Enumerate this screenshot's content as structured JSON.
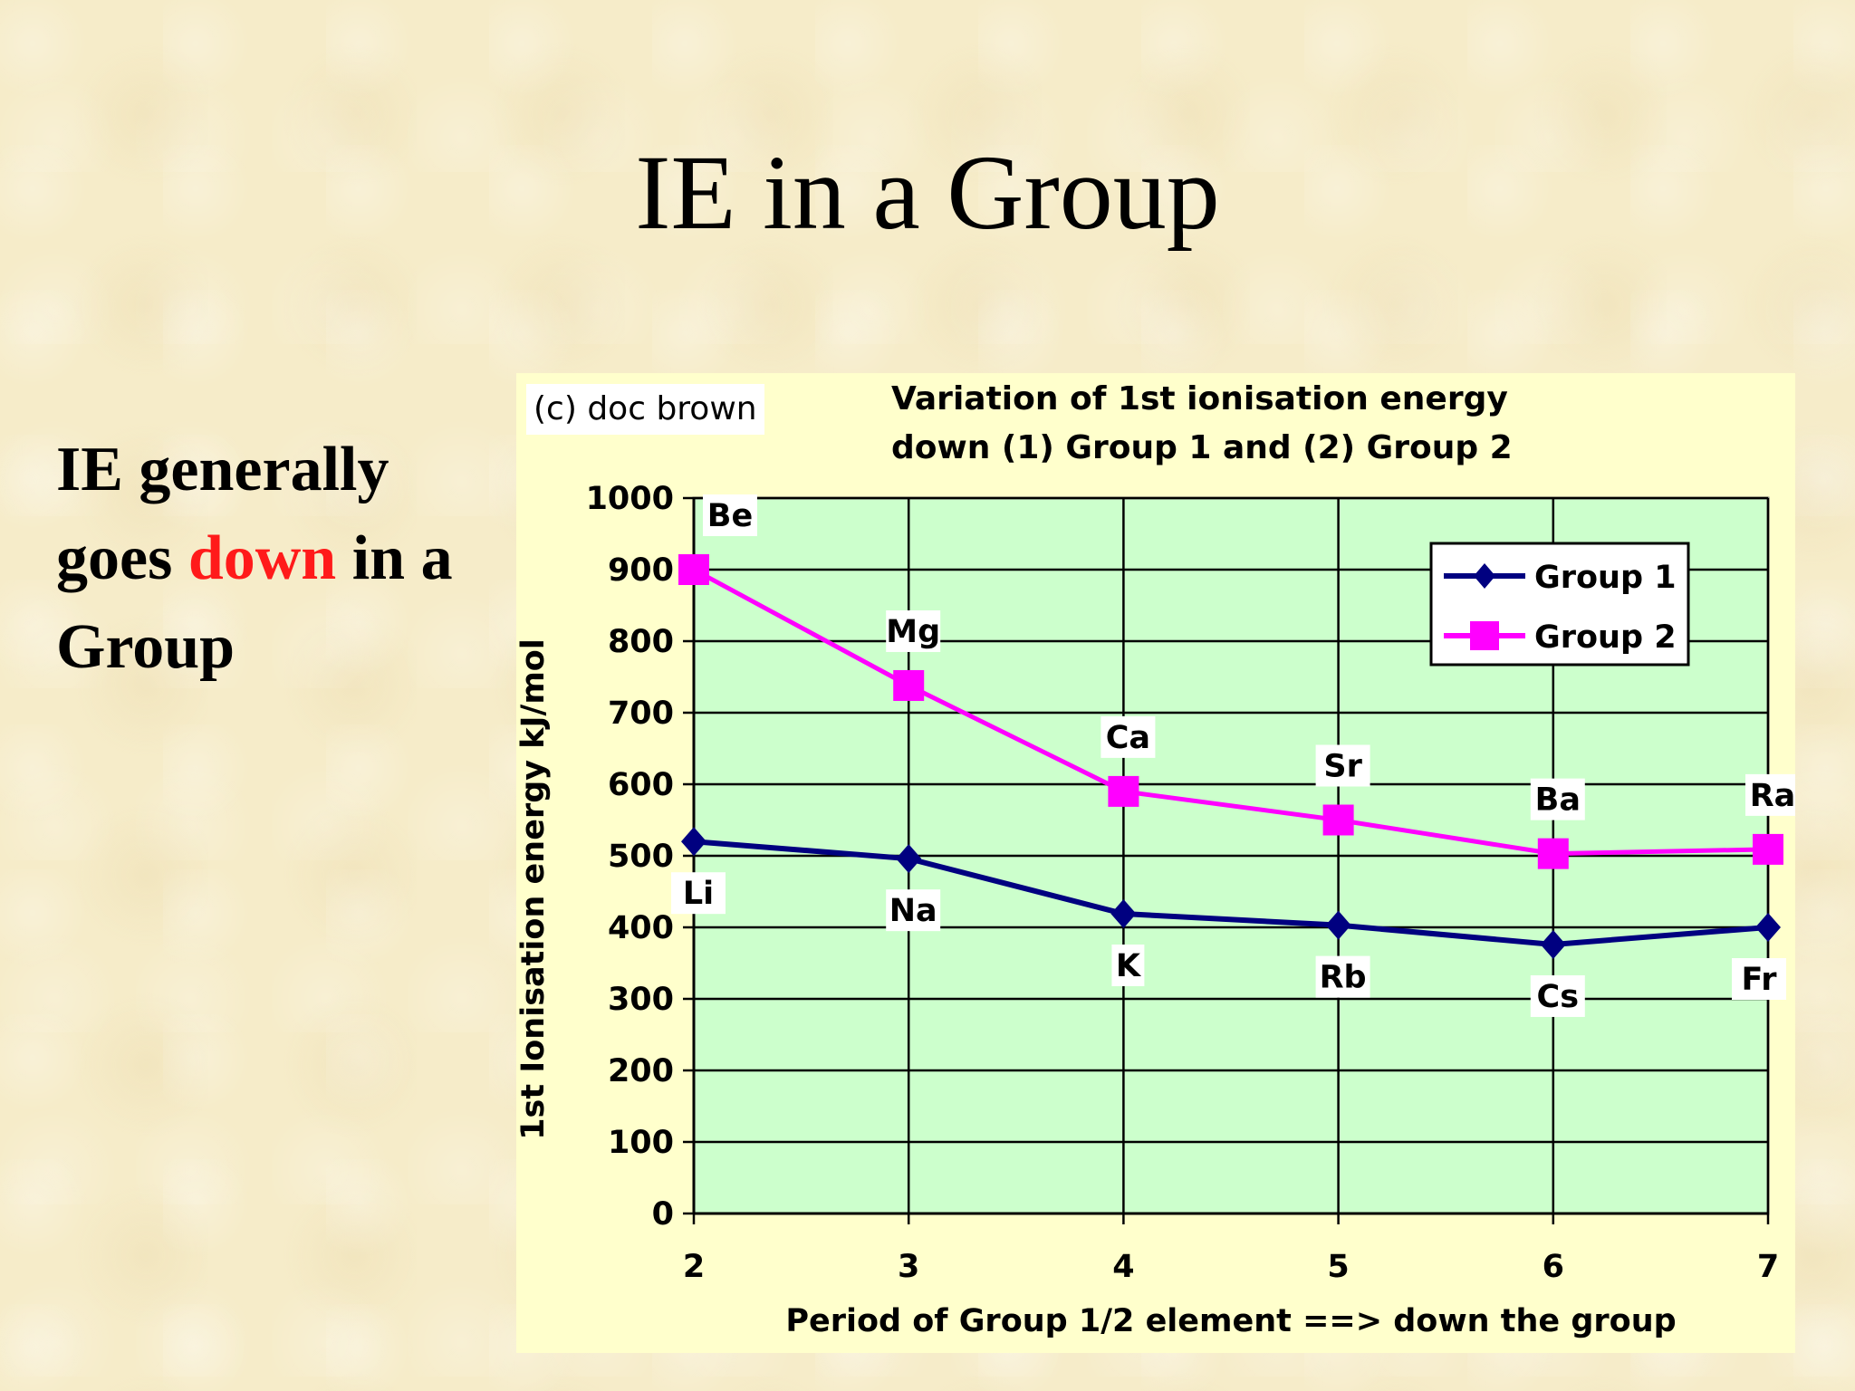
{
  "slide": {
    "title": "IE in a Group",
    "side_text_before": "IE generally goes ",
    "side_text_highlight": "down",
    "side_text_after": " in a Group",
    "highlight_color": "#ff1a1a"
  },
  "chart_data": {
    "type": "line",
    "copyright": "(c) doc brown",
    "title": "Variation of 1st ionisation energy\ndown (1) Group 1 and (2) Group 2",
    "xlabel": "Period of Group 1/2 element ==> down the group",
    "ylabel": "1st Ionisation energy kJ/mol",
    "x": [
      2,
      3,
      4,
      5,
      6,
      7
    ],
    "xlim": [
      2,
      7
    ],
    "ylim": [
      0,
      1000
    ],
    "yticks": [
      0,
      100,
      200,
      300,
      400,
      500,
      600,
      700,
      800,
      900,
      1000
    ],
    "xticks": [
      2,
      3,
      4,
      5,
      6,
      7
    ],
    "grid": true,
    "plot_background": "#ccffcc",
    "legend_position": "top-right",
    "series": [
      {
        "name": "Group 1",
        "color": "#000080",
        "marker": "diamond",
        "values": [
          520,
          496,
          419,
          403,
          376,
          400
        ],
        "point_labels": [
          "Li",
          "Na",
          "K",
          "Rb",
          "Cs",
          "Fr"
        ]
      },
      {
        "name": "Group 2",
        "color": "#ff00ff",
        "marker": "square",
        "values": [
          900,
          738,
          590,
          550,
          503,
          509
        ],
        "point_labels": [
          "Be",
          "Mg",
          "Ca",
          "Sr",
          "Ba",
          "Ra"
        ]
      }
    ]
  }
}
